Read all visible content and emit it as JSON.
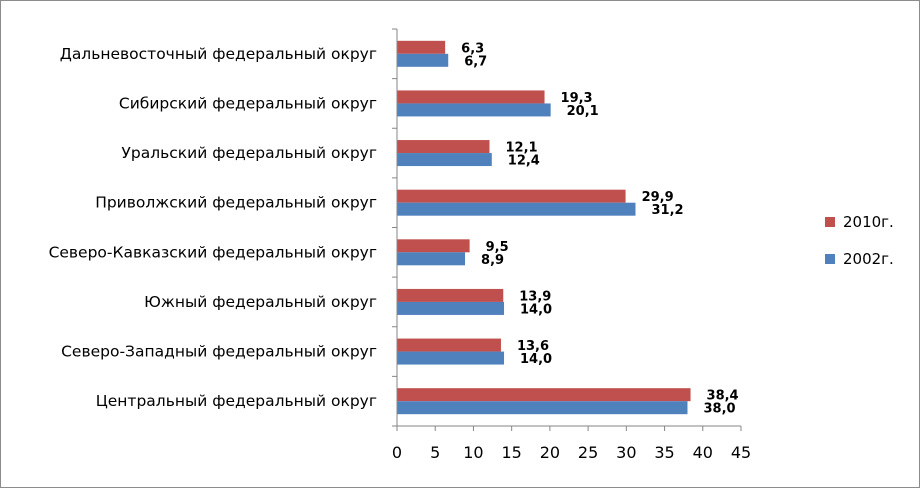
{
  "chart_data": {
    "type": "bar",
    "orientation": "horizontal",
    "categories": [
      "Центральный федеральный округ",
      "Северо-Западный федеральный округ",
      "Южный федеральный округ",
      "Северо-Кавказский федеральный округ",
      "Приволжский федеральный округ",
      "Уральский федеральный округ",
      "Сибирский федеральный округ",
      "Дальневосточный федеральный округ"
    ],
    "series": [
      {
        "name": "2010г.",
        "color": "#C0504D",
        "values": [
          38.4,
          13.6,
          13.9,
          9.5,
          29.9,
          12.1,
          19.3,
          6.3
        ],
        "labels": [
          "38,4",
          "13,6",
          "13,9",
          "9,5",
          "29,9",
          "12,1",
          "19,3",
          "6,3"
        ]
      },
      {
        "name": "2002г.",
        "color": "#4F81BD",
        "values": [
          38.0,
          14.0,
          14.0,
          8.9,
          31.2,
          12.4,
          20.1,
          6.7
        ],
        "labels": [
          "38,0",
          "14,0",
          "14,0",
          "8,9",
          "31,2",
          "12,4",
          "20,1",
          "6,7"
        ]
      }
    ],
    "xlim": [
      0,
      45
    ],
    "xticks": [
      0,
      5,
      10,
      15,
      20,
      25,
      30,
      35,
      40,
      45
    ],
    "title": "",
    "xlabel": "",
    "ylabel": "",
    "grid": false,
    "legend_position": "right"
  }
}
